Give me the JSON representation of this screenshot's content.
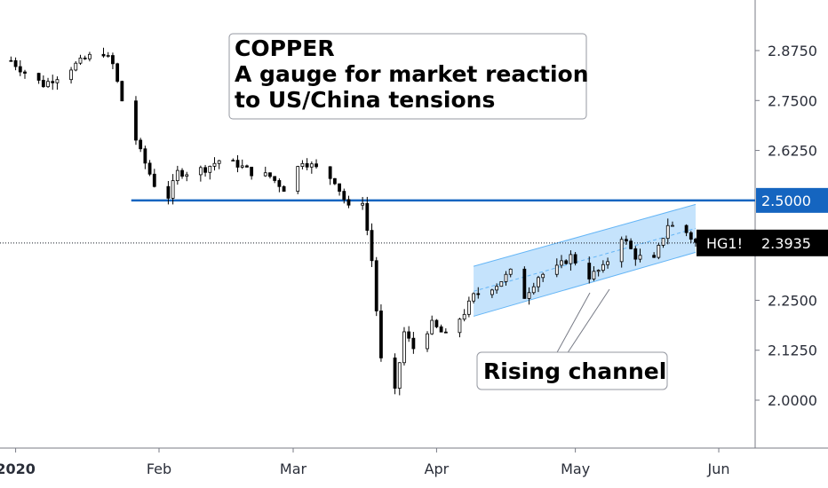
{
  "chart_data": {
    "type": "candlestick",
    "title_lines": [
      "COPPER",
      "A gauge for market reaction",
      "to US/China tensions"
    ],
    "symbol": "HG1!",
    "last_price": "2.3935",
    "x_axis_labels": [
      "2020",
      "Feb",
      "Mar",
      "Apr",
      "May",
      "Jun"
    ],
    "y_ticks": [
      "2.8750",
      "2.7500",
      "2.6250",
      "2.5000",
      "2.3935",
      "2.2500",
      "2.1250",
      "2.0000"
    ],
    "y_tick_values": [
      2.875,
      2.75,
      2.625,
      2.5,
      2.3935,
      2.25,
      2.125,
      2.0
    ],
    "ylim": [
      1.9,
      2.97
    ],
    "horizontal_level": {
      "value": 2.5,
      "label": "2.5000",
      "color": "#1565c0"
    },
    "channel": {
      "label": "Rising channel",
      "start_date": "2020-04-09",
      "end_date": "2020-05-27",
      "upper": [
        2.335,
        2.49
      ],
      "lower": [
        2.21,
        2.37
      ],
      "fill": "#bbdefb",
      "border": "#64b5f6"
    },
    "close_series_anchors": [
      [
        "2019-12-31",
        2.85
      ],
      [
        "2020-01-03",
        2.82
      ],
      [
        "2020-01-07",
        2.79
      ],
      [
        "2020-01-10",
        2.81
      ],
      [
        "2020-01-14",
        2.84
      ],
      [
        "2020-01-17",
        2.86
      ],
      [
        "2020-01-20",
        2.87
      ],
      [
        "2020-01-22",
        2.84
      ],
      [
        "2020-01-24",
        2.75
      ],
      [
        "2020-01-28",
        2.62
      ],
      [
        "2020-01-31",
        2.54
      ],
      [
        "2020-02-03",
        2.51
      ],
      [
        "2020-02-05",
        2.57
      ],
      [
        "2020-02-07",
        2.57
      ],
      [
        "2020-02-11",
        2.58
      ],
      [
        "2020-02-14",
        2.6
      ],
      [
        "2020-02-18",
        2.59
      ],
      [
        "2020-02-21",
        2.57
      ],
      [
        "2020-02-25",
        2.56
      ],
      [
        "2020-02-28",
        2.53
      ],
      [
        "2020-03-03",
        2.6
      ],
      [
        "2020-03-06",
        2.58
      ],
      [
        "2020-03-10",
        2.55
      ],
      [
        "2020-03-13",
        2.48
      ],
      [
        "2020-03-16",
        2.5
      ],
      [
        "2020-03-18",
        2.35
      ],
      [
        "2020-03-20",
        2.1
      ],
      [
        "2020-03-23",
        2.02
      ],
      [
        "2020-03-25",
        2.17
      ],
      [
        "2020-03-27",
        2.13
      ],
      [
        "2020-03-31",
        2.19
      ],
      [
        "2020-04-03",
        2.16
      ],
      [
        "2020-04-07",
        2.22
      ],
      [
        "2020-04-09",
        2.26
      ],
      [
        "2020-04-14",
        2.29
      ],
      [
        "2020-04-17",
        2.32
      ],
      [
        "2020-04-20",
        2.26
      ],
      [
        "2020-04-23",
        2.31
      ],
      [
        "2020-04-27",
        2.33
      ],
      [
        "2020-04-30",
        2.36
      ],
      [
        "2020-05-04",
        2.31
      ],
      [
        "2020-05-07",
        2.33
      ],
      [
        "2020-05-11",
        2.41
      ],
      [
        "2020-05-14",
        2.36
      ],
      [
        "2020-05-18",
        2.35
      ],
      [
        "2020-05-21",
        2.44
      ],
      [
        "2020-05-25",
        2.42
      ],
      [
        "2020-05-27",
        2.3935
      ]
    ],
    "series": [
      {
        "name": "HG1!",
        "color": "#000000",
        "kind": "ohlc candles"
      }
    ],
    "colors": {
      "candle": "#000000",
      "level_line": "#1565c0",
      "price_tag_bg": "#000000",
      "price_tag_text": "#ffffff"
    },
    "grid": false,
    "legend": "none"
  }
}
